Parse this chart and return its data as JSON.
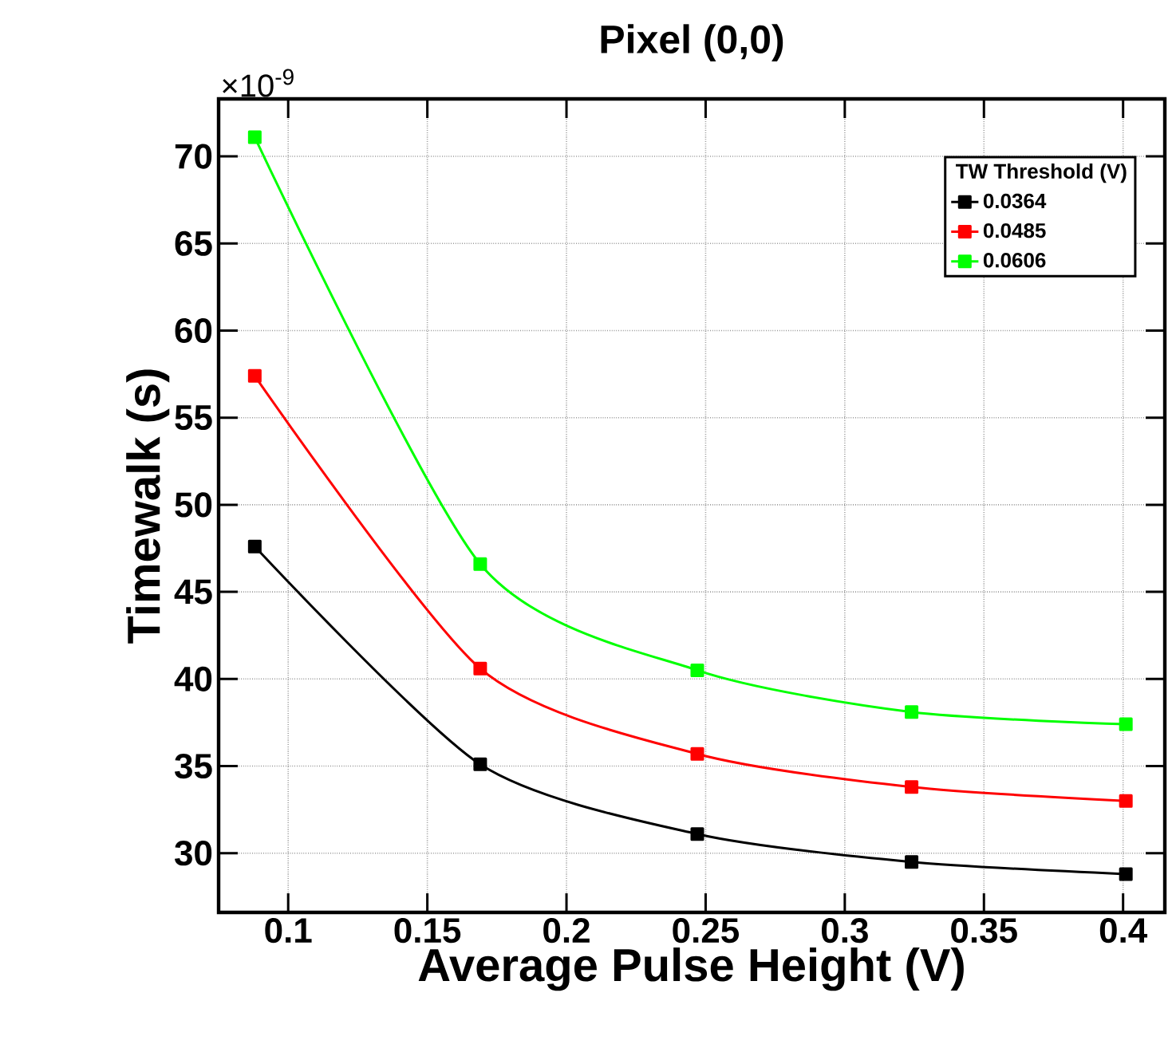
{
  "chart_data": {
    "type": "line",
    "title": "Pixel (0,0)",
    "xlabel": "Average Pulse Height (V)",
    "ylabel": "Timewalk (s)",
    "legend_title": "TW Threshold (V)",
    "annotations": [
      "×10$^{-9}$"
    ],
    "x": [
      0.088,
      0.169,
      0.247,
      0.324,
      0.401
    ],
    "series": [
      {
        "name": "0.0364",
        "color": "#000000",
        "values": [
          47.6,
          35.1,
          31.1,
          29.5,
          28.8
        ]
      },
      {
        "name": "0.0485",
        "color": "#ff0000",
        "values": [
          57.4,
          40.6,
          35.7,
          33.8,
          33.0
        ]
      },
      {
        "name": "0.0606",
        "color": "#00ff00",
        "values": [
          71.1,
          46.6,
          40.5,
          38.1,
          37.4
        ]
      }
    ],
    "xlim": [
      0.075,
      0.415
    ],
    "ylim": [
      26.6,
      73.3
    ],
    "xticks": [
      {
        "value": 0.1,
        "label": "0.1"
      },
      {
        "value": 0.15,
        "label": "0.15"
      },
      {
        "value": 0.2,
        "label": "0.2"
      },
      {
        "value": 0.25,
        "label": "0.25"
      },
      {
        "value": 0.3,
        "label": "0.3"
      },
      {
        "value": 0.35,
        "label": "0.35"
      },
      {
        "value": 0.4,
        "label": "0.4"
      }
    ],
    "yticks": [
      30,
      35,
      40,
      45,
      50,
      55,
      60,
      65,
      70
    ],
    "grid": true,
    "legend": "top right",
    "marker": "square",
    "line_style": "solid"
  }
}
